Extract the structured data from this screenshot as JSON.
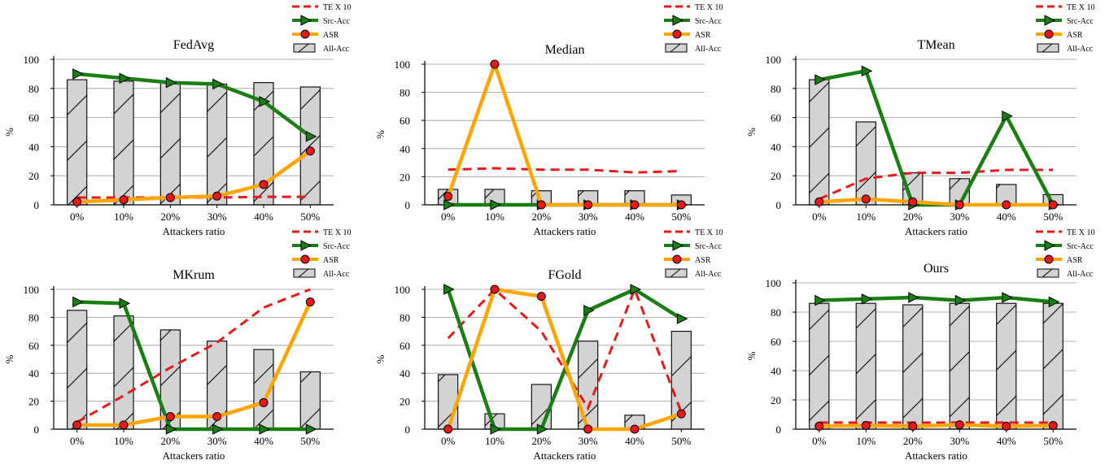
{
  "colors": {
    "te": "#e8191b",
    "src": "#1a7f12",
    "asr": "#ffa500",
    "asr_marker": "#e8191b",
    "bar": "#d3d3d3",
    "grid": "#999999"
  },
  "legend": [
    {
      "key": "te",
      "label": "TE X 10"
    },
    {
      "key": "src",
      "label": "Src-Acc"
    },
    {
      "key": "asr",
      "label": "ASR"
    },
    {
      "key": "all",
      "label": "All-Acc"
    }
  ],
  "chart_data": [
    {
      "type": "bar",
      "title": "FedAvg",
      "xlabel": "Attackers ratio",
      "ylabel": "%",
      "categories": [
        "0%",
        "10%",
        "20%",
        "30%",
        "40%",
        "50%"
      ],
      "ylim": [
        0,
        100
      ],
      "yticks": [
        0,
        20,
        40,
        60,
        80,
        100
      ],
      "grid": true,
      "legend_position": "top-right",
      "series": [
        {
          "name": "All-Acc",
          "kind": "bar",
          "values": [
            86,
            85,
            84,
            83,
            84,
            81
          ]
        },
        {
          "name": "TE X 10",
          "kind": "line-dashed",
          "values": [
            5,
            5,
            5,
            5,
            5.5,
            5.5
          ]
        },
        {
          "name": "Src-Acc",
          "kind": "line-triangle",
          "values": [
            90,
            87,
            84,
            83,
            71,
            47
          ]
        },
        {
          "name": "ASR",
          "kind": "line-circle",
          "values": [
            2,
            3.5,
            5,
            6,
            14,
            37
          ]
        }
      ]
    },
    {
      "type": "bar",
      "title": "Median",
      "xlabel": "Attackers ratio",
      "ylabel": "%",
      "categories": [
        "0%",
        "10%",
        "20%",
        "30%",
        "40%",
        "50%"
      ],
      "ylim": [
        0,
        100
      ],
      "yticks": [
        0,
        20,
        40,
        60,
        80,
        100
      ],
      "grid": true,
      "legend_position": "top-right",
      "series": [
        {
          "name": "All-Acc",
          "kind": "bar",
          "values": [
            11,
            11,
            10,
            10,
            10,
            7
          ]
        },
        {
          "name": "TE X 10",
          "kind": "line-dashed",
          "values": [
            25,
            26,
            25,
            25,
            23,
            24
          ]
        },
        {
          "name": "Src-Acc",
          "kind": "line-triangle",
          "values": [
            0,
            0,
            0,
            0,
            0,
            0
          ]
        },
        {
          "name": "ASR",
          "kind": "line-circle",
          "values": [
            6,
            100,
            0,
            0,
            0,
            0
          ]
        }
      ]
    },
    {
      "type": "bar",
      "title": "TMean",
      "xlabel": "Attackers ratio",
      "ylabel": "%",
      "categories": [
        "0%",
        "10%",
        "20%",
        "30%",
        "40%",
        "50%"
      ],
      "ylim": [
        0,
        100
      ],
      "yticks": [
        0,
        20,
        40,
        60,
        80,
        100
      ],
      "grid": true,
      "legend_position": "top-right",
      "series": [
        {
          "name": "All-Acc",
          "kind": "bar",
          "values": [
            86,
            57,
            22,
            18,
            14,
            7
          ]
        },
        {
          "name": "TE X 10",
          "kind": "line-dashed",
          "values": [
            4,
            18,
            22,
            22,
            24,
            24
          ]
        },
        {
          "name": "Src-Acc",
          "kind": "line-triangle",
          "values": [
            86,
            92,
            0,
            0,
            61,
            0
          ]
        },
        {
          "name": "ASR",
          "kind": "line-circle",
          "values": [
            2,
            4,
            2,
            0,
            0,
            0
          ]
        }
      ]
    },
    {
      "type": "bar",
      "title": "MKrum",
      "xlabel": "Attackers ratio",
      "ylabel": "%",
      "categories": [
        "0%",
        "10%",
        "20%",
        "30%",
        "40%",
        "50%"
      ],
      "ylim": [
        0,
        100
      ],
      "yticks": [
        0,
        20,
        40,
        60,
        80,
        100
      ],
      "grid": true,
      "legend_position": "top-right",
      "series": [
        {
          "name": "All-Acc",
          "kind": "bar",
          "values": [
            85,
            81,
            71,
            63,
            57,
            41
          ]
        },
        {
          "name": "TE X 10",
          "kind": "line-dashed",
          "values": [
            5,
            24,
            44,
            62,
            87,
            100
          ]
        },
        {
          "name": "Src-Acc",
          "kind": "line-triangle",
          "values": [
            91,
            90,
            0,
            0,
            0,
            0
          ]
        },
        {
          "name": "ASR",
          "kind": "line-circle",
          "values": [
            3,
            3,
            9,
            9,
            19,
            91
          ]
        }
      ]
    },
    {
      "type": "bar",
      "title": "FGold",
      "xlabel": "Attackers ratio",
      "ylabel": "%",
      "categories": [
        "0%",
        "10%",
        "20%",
        "30%",
        "40%",
        "50%"
      ],
      "ylim": [
        0,
        100
      ],
      "yticks": [
        0,
        20,
        40,
        60,
        80,
        100
      ],
      "grid": true,
      "legend_position": "top-right",
      "series": [
        {
          "name": "All-Acc",
          "kind": "bar",
          "values": [
            39,
            11,
            32,
            63,
            10,
            70
          ]
        },
        {
          "name": "TE X 10",
          "kind": "line-dashed",
          "values": [
            65,
            100,
            70,
            15,
            100,
            12
          ]
        },
        {
          "name": "Src-Acc",
          "kind": "line-triangle",
          "values": [
            100,
            0,
            0,
            85,
            100,
            79
          ]
        },
        {
          "name": "ASR",
          "kind": "line-circle",
          "values": [
            0,
            100,
            95,
            0,
            0,
            11
          ]
        }
      ]
    },
    {
      "type": "bar",
      "title": "Ours",
      "xlabel": "Attackers ratio",
      "ylabel": "%",
      "categories": [
        "0%",
        "10%",
        "20%",
        "30%",
        "40%",
        "50%"
      ],
      "ylim": [
        0,
        100
      ],
      "yticks": [
        0,
        20,
        40,
        60,
        80,
        100
      ],
      "grid": true,
      "legend_position": "top-right",
      "series": [
        {
          "name": "All-Acc",
          "kind": "bar",
          "values": [
            86,
            86,
            85,
            86,
            86,
            86
          ]
        },
        {
          "name": "TE X 10",
          "kind": "line-dashed",
          "values": [
            4.5,
            4.5,
            4.5,
            4.5,
            4.5,
            4.5
          ]
        },
        {
          "name": "Src-Acc",
          "kind": "line-triangle",
          "values": [
            88,
            89,
            90,
            88,
            90,
            87
          ]
        },
        {
          "name": "ASR",
          "kind": "line-circle",
          "values": [
            2,
            2.5,
            2,
            3,
            2,
            2.5
          ]
        }
      ]
    }
  ]
}
